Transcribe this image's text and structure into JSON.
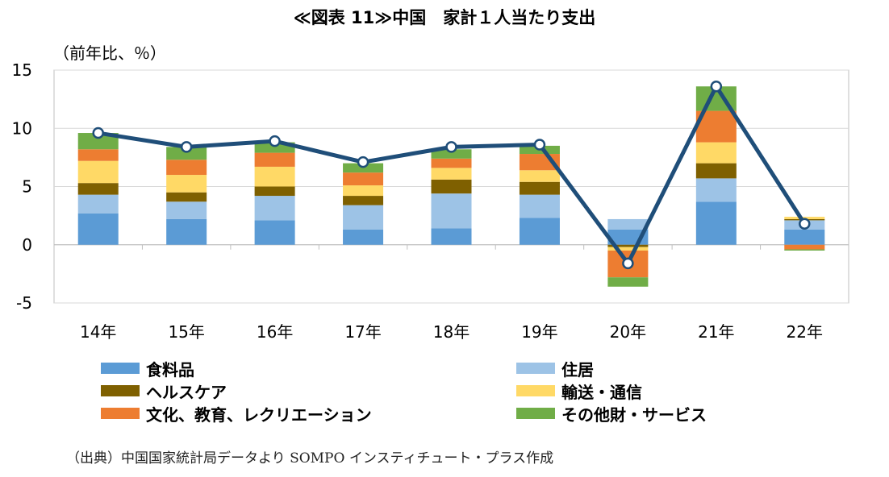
{
  "title": "≪図表 11≫中国　家計１人当たり支出",
  "source": "（出典）中国国家統計局データより SOMPO インスティチュート・プラス作成",
  "chart_data": {
    "type": "bar",
    "stacked": true,
    "title": "≪図表 11≫中国　家計１人当たり支出",
    "ylabel": "（前年比、％）",
    "xlabel": "",
    "ylim": [
      -5,
      15
    ],
    "yticks": [
      "15",
      "10",
      "5",
      "0",
      "-5"
    ],
    "ytick_values": [
      15,
      10,
      5,
      0,
      -5
    ],
    "grid": true,
    "legend_position": "bottom",
    "categories": [
      "14年",
      "15年",
      "16年",
      "17年",
      "18年",
      "19年",
      "20年",
      "21年",
      "22年"
    ],
    "series": [
      {
        "name": "食料品",
        "color": "#5b9bd5",
        "values": [
          2.7,
          2.2,
          2.1,
          1.3,
          1.4,
          2.3,
          1.3,
          3.7,
          1.3
        ]
      },
      {
        "name": "住居",
        "color": "#9dc3e6",
        "values": [
          1.6,
          1.5,
          2.1,
          2.1,
          3.0,
          2.0,
          0.9,
          2.0,
          0.8
        ]
      },
      {
        "name": "ヘルスケア",
        "color": "#7f6000",
        "values": [
          1.0,
          0.8,
          0.8,
          0.8,
          1.2,
          1.1,
          -0.2,
          1.3,
          0.1
        ]
      },
      {
        "name": "輸送・通信",
        "color": "#ffd966",
        "values": [
          1.9,
          1.5,
          1.7,
          0.9,
          1.0,
          1.0,
          -0.3,
          1.8,
          0.2
        ]
      },
      {
        "name": "文化、教育、レクリエーション",
        "color": "#ed7d31",
        "values": [
          1.0,
          1.3,
          1.2,
          1.1,
          0.8,
          1.4,
          -2.3,
          2.7,
          -0.4
        ]
      },
      {
        "name": "その他財・サービス",
        "color": "#70ad47",
        "values": [
          1.4,
          1.1,
          0.9,
          0.8,
          0.8,
          0.7,
          -0.8,
          2.1,
          -0.1
        ]
      }
    ],
    "line": {
      "color": "#1f4e79",
      "values": [
        9.6,
        8.4,
        8.9,
        7.1,
        8.4,
        8.6,
        -1.6,
        13.6,
        1.8
      ]
    }
  }
}
